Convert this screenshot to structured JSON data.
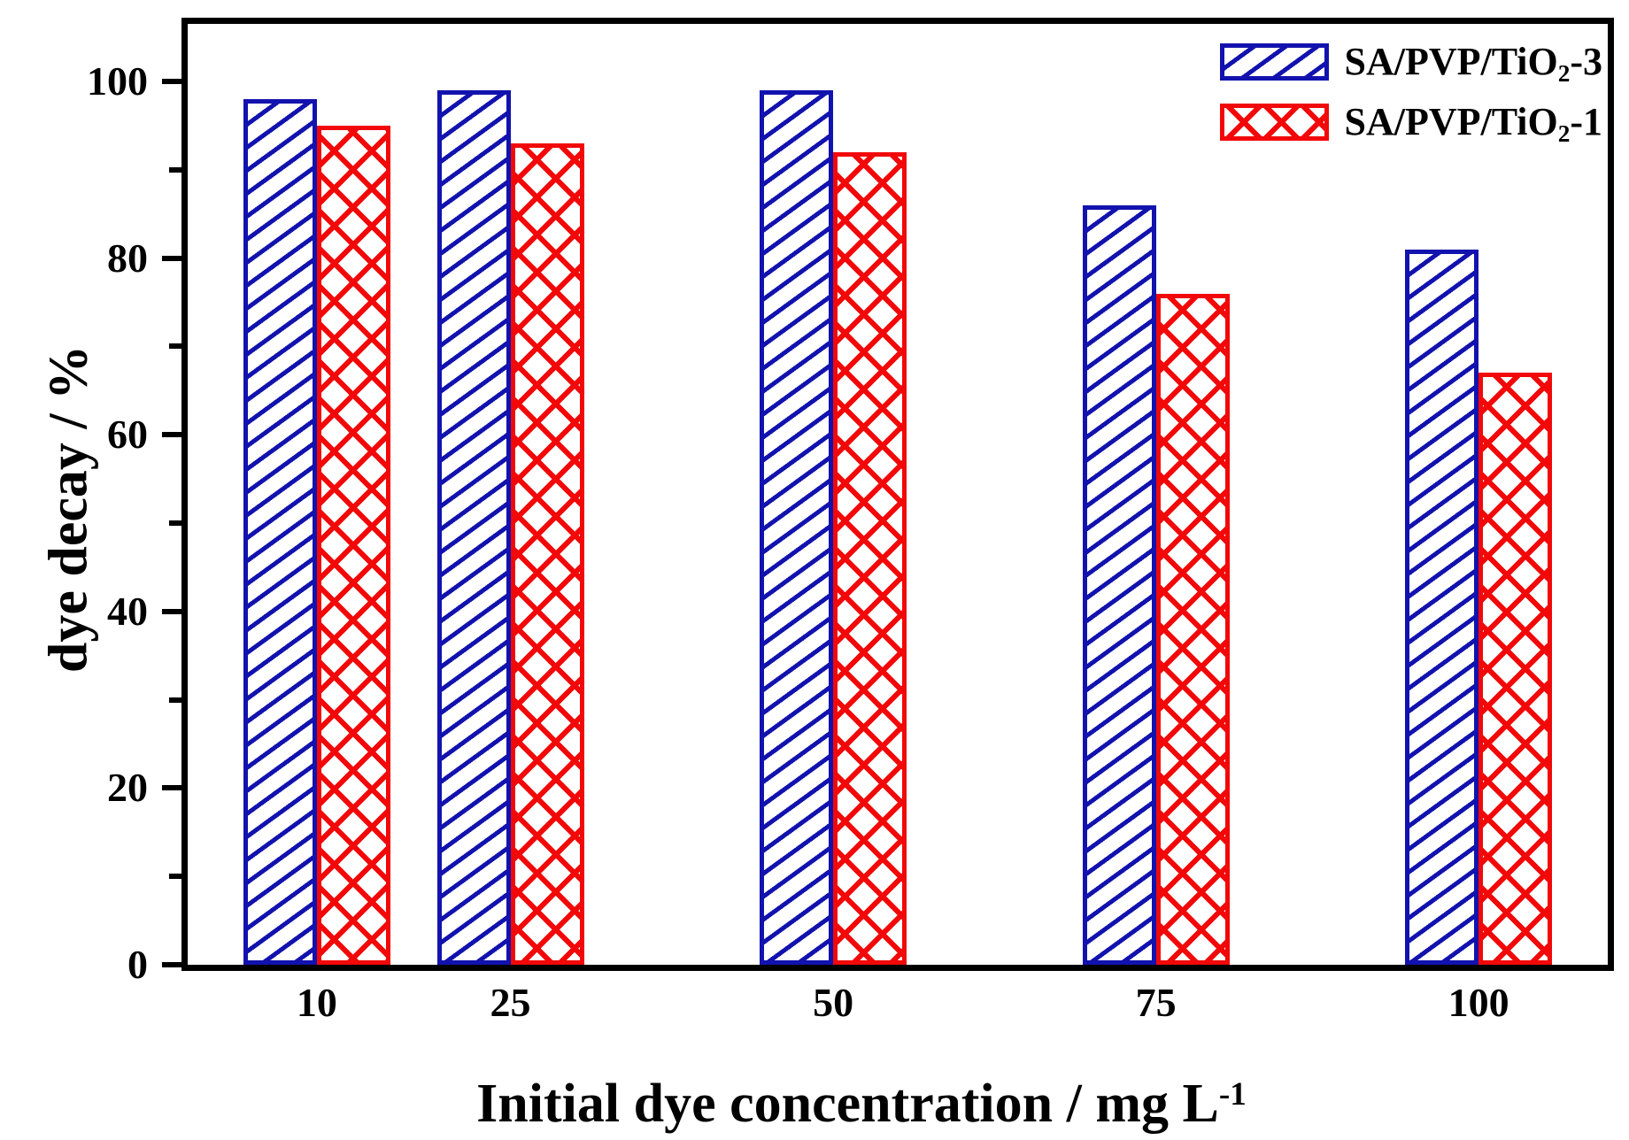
{
  "chart_data": {
    "type": "bar",
    "title": "",
    "xlabel": "Initial dye concentration / mg L^-1",
    "xlabel_parts": {
      "base": "Initial dye concentration / mg L",
      "sup": "-1"
    },
    "ylabel": "dye decay / %",
    "categories": [
      10,
      25,
      50,
      75,
      100
    ],
    "series": [
      {
        "id": "sa-pvp-tio2-3",
        "name": "SA/PVP/TiO2-3",
        "label_parts": {
          "base": "SA/PVP/TiO",
          "sub": "2",
          "suffix": "-3"
        },
        "color": "#1212AE",
        "hatch": "diagonal-forward",
        "values": [
          98,
          99,
          99,
          86,
          81
        ]
      },
      {
        "id": "sa-pvp-tio2-1",
        "name": "SA/PVP/TiO2-1",
        "label_parts": {
          "base": "SA/PVP/TiO",
          "sub": "2",
          "suffix": "-1"
        },
        "color": "#F20808",
        "hatch": "crosshatch",
        "values": [
          95,
          93,
          92,
          76,
          67
        ]
      }
    ],
    "ylim": [
      0,
      106.5
    ],
    "xlim": [
      0,
      110
    ],
    "yticks_major": [
      0,
      20,
      40,
      60,
      80,
      100
    ],
    "yticks_minor": [
      10,
      30,
      50,
      70,
      90
    ],
    "grid": false,
    "frame": true,
    "legend_position": "top-right",
    "axis_color": "#000000",
    "background_color": "#FFFFFF"
  }
}
